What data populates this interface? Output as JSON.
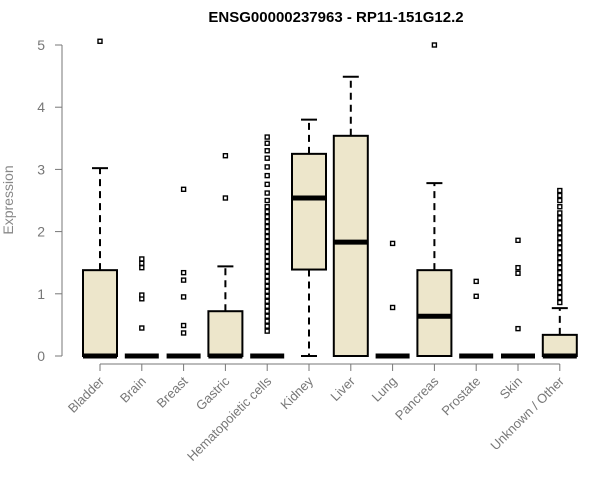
{
  "chart_data": {
    "type": "boxplot",
    "title": "ENSG00000237963 - RP11-151G12.2",
    "ylabel": "Expression",
    "xlabel": "",
    "ylim": [
      0,
      5.2
    ],
    "yticks": [
      0,
      1,
      2,
      3,
      4,
      5
    ],
    "box_fill": "#ede6cb",
    "box_stroke": "#000000",
    "categories": [
      "Bladder",
      "Brain",
      "Breast",
      "Gastric",
      "Hematopoietic cells",
      "Kidney",
      "Liver",
      "Lung",
      "Pancreas",
      "Prostate",
      "Skin",
      "Unknown / Other"
    ],
    "boxes": [
      {
        "q1": 0,
        "median": 0,
        "q3": 1.38,
        "whisker_low": 0,
        "whisker_high": 3.02,
        "outliers": [
          5.06
        ]
      },
      {
        "q1": 0,
        "median": 0,
        "q3": 0,
        "whisker_low": 0,
        "whisker_high": 0,
        "outliers": [
          0.45,
          0.92,
          0.98,
          1.42,
          1.49,
          1.56
        ]
      },
      {
        "q1": 0,
        "median": 0,
        "q3": 0,
        "whisker_low": 0,
        "whisker_high": 0,
        "outliers": [
          0.37,
          0.49,
          0.95,
          1.22,
          1.34,
          2.68
        ]
      },
      {
        "q1": 0,
        "median": 0,
        "q3": 0.72,
        "whisker_low": 0,
        "whisker_high": 1.44,
        "outliers": [
          2.54,
          3.22
        ]
      },
      {
        "q1": 0,
        "median": 0,
        "q3": 0,
        "whisker_low": 0,
        "whisker_high": 0,
        "outliers": [
          0.4,
          0.48,
          0.56,
          0.64,
          0.72,
          0.8,
          0.88,
          0.96,
          1.04,
          1.12,
          1.2,
          1.28,
          1.36,
          1.44,
          1.52,
          1.6,
          1.68,
          1.76,
          1.84,
          1.92,
          2.0,
          2.08,
          2.16,
          2.24,
          2.32,
          2.4,
          2.5,
          2.62,
          2.76,
          2.9,
          3.04,
          3.18,
          3.3,
          3.42,
          3.52
        ]
      },
      {
        "q1": 1.39,
        "median": 2.54,
        "q3": 3.25,
        "whisker_low": 0,
        "whisker_high": 3.8,
        "outliers": []
      },
      {
        "q1": 0,
        "median": 1.83,
        "q3": 3.54,
        "whisker_low": 0,
        "whisker_high": 4.49,
        "outliers": []
      },
      {
        "q1": 0,
        "median": 0,
        "q3": 0,
        "whisker_low": 0,
        "whisker_high": 0,
        "outliers": [
          0.78,
          1.81
        ]
      },
      {
        "q1": 0,
        "median": 0.64,
        "q3": 1.38,
        "whisker_low": 0,
        "whisker_high": 2.78,
        "outliers": [
          5.0
        ]
      },
      {
        "q1": 0,
        "median": 0,
        "q3": 0,
        "whisker_low": 0,
        "whisker_high": 0,
        "outliers": [
          0.96,
          1.2
        ]
      },
      {
        "q1": 0,
        "median": 0,
        "q3": 0,
        "whisker_low": 0,
        "whisker_high": 0,
        "outliers": [
          0.44,
          1.33,
          1.42,
          1.86
        ]
      },
      {
        "q1": 0,
        "median": 0,
        "q3": 0.34,
        "whisker_low": 0,
        "whisker_high": 0.77,
        "outliers": [
          0.86,
          0.94,
          1.02,
          1.1,
          1.18,
          1.26,
          1.34,
          1.42,
          1.5,
          1.58,
          1.66,
          1.74,
          1.82,
          1.9,
          1.98,
          2.06,
          2.14,
          2.22,
          2.3,
          2.4,
          2.5,
          2.58,
          2.66
        ]
      }
    ]
  }
}
